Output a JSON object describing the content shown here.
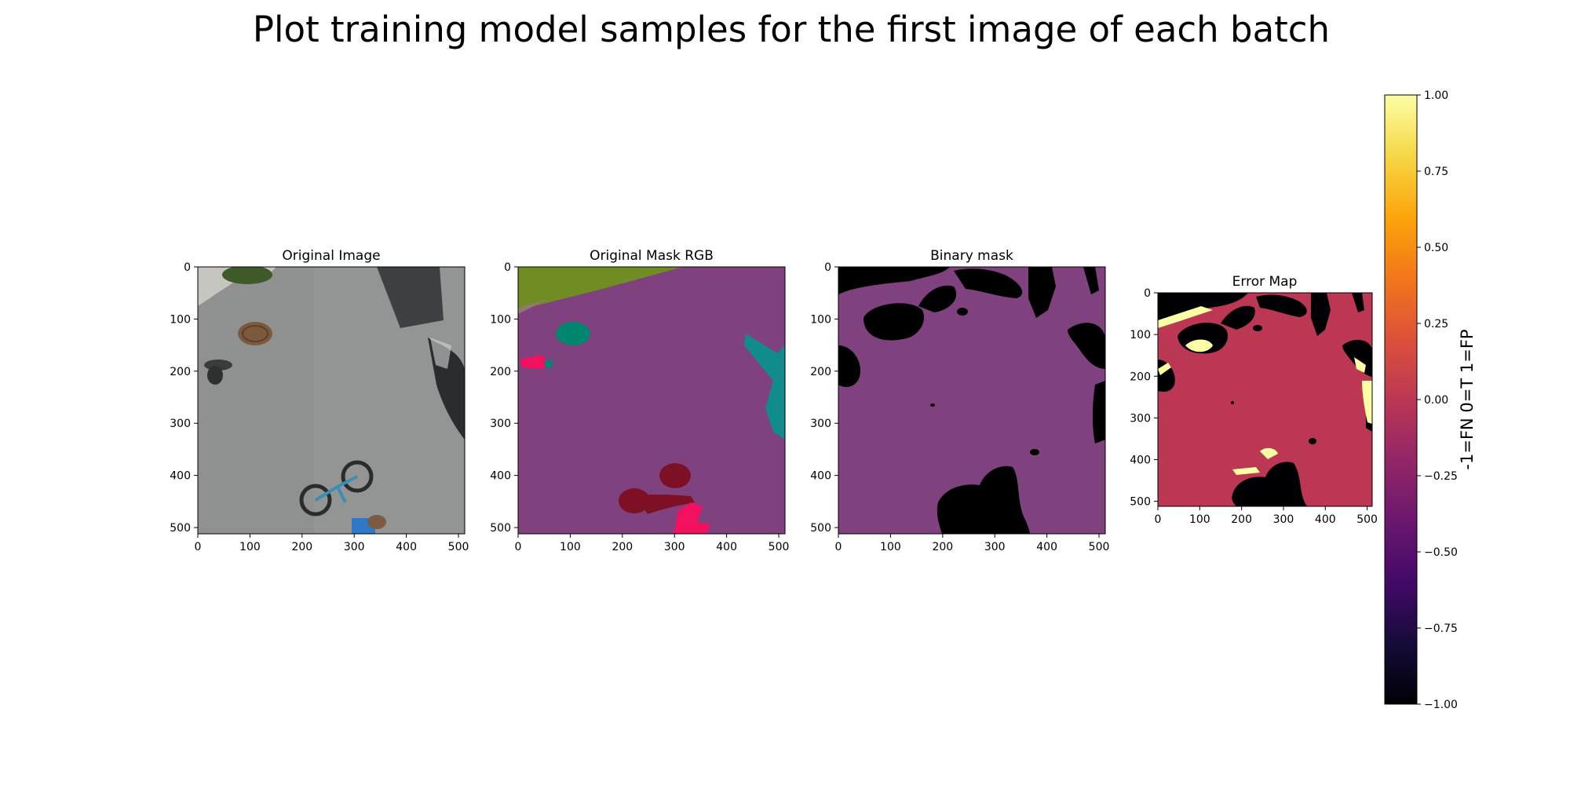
{
  "figure": {
    "suptitle": "Plot training model samples for the first image of each batch"
  },
  "chart_data": [
    {
      "type": "image",
      "title": "Original Image",
      "xlim": [
        0,
        512
      ],
      "ylim": [
        512,
        0
      ],
      "x_ticks": [
        "0",
        "100",
        "200",
        "300",
        "400",
        "500"
      ],
      "y_ticks": [
        "0",
        "100",
        "200",
        "300",
        "400",
        "500"
      ],
      "content": "aerial photo: asphalt road, manhole cover, pedestrian, cyclist on bicycle, parked car"
    },
    {
      "type": "image",
      "title": "Original Mask RGB",
      "xlim": [
        0,
        512
      ],
      "ylim": [
        512,
        0
      ],
      "x_ticks": [
        "0",
        "100",
        "200",
        "300",
        "400",
        "500"
      ],
      "y_ticks": [
        "0",
        "100",
        "200",
        "300",
        "400",
        "500"
      ],
      "colors": {
        "background": "#7f427f",
        "vegetation": "#6f8d22",
        "manhole": "#00856f",
        "person": "#f2105f",
        "bicycle": "#7d1024",
        "car": "#118c8c"
      }
    },
    {
      "type": "image",
      "title": "Binary mask",
      "xlim": [
        0,
        512
      ],
      "ylim": [
        512,
        0
      ],
      "x_ticks": [
        "0",
        "100",
        "200",
        "300",
        "400",
        "500"
      ],
      "y_ticks": [
        "0",
        "100",
        "200",
        "300",
        "400",
        "500"
      ],
      "colors": {
        "foreground": "#7f427f",
        "background": "#000000"
      }
    },
    {
      "type": "heatmap",
      "title": "Error Map",
      "xlim": [
        0,
        512
      ],
      "ylim": [
        512,
        0
      ],
      "x_ticks": [
        "0",
        "100",
        "200",
        "300",
        "400",
        "500"
      ],
      "y_ticks": [
        "0",
        "100",
        "200",
        "300",
        "400",
        "500"
      ],
      "colormap": "inferno",
      "colors": {
        "fn": "#000004",
        "t": "#bb3754",
        "fp": "#fcffa4"
      },
      "colorbar": {
        "label": "-1=FN 0=T 1=FP",
        "range": [
          -1,
          1
        ],
        "ticks": [
          {
            "value": 1.0,
            "label": "1.00"
          },
          {
            "value": 0.75,
            "label": "0.75"
          },
          {
            "value": 0.5,
            "label": "0.50"
          },
          {
            "value": 0.25,
            "label": "0.25"
          },
          {
            "value": 0.0,
            "label": "0.00"
          },
          {
            "value": -0.25,
            "label": "−0.25"
          },
          {
            "value": -0.5,
            "label": "−0.50"
          },
          {
            "value": -0.75,
            "label": "−0.75"
          },
          {
            "value": -1.0,
            "label": "−1.00"
          }
        ]
      }
    }
  ]
}
